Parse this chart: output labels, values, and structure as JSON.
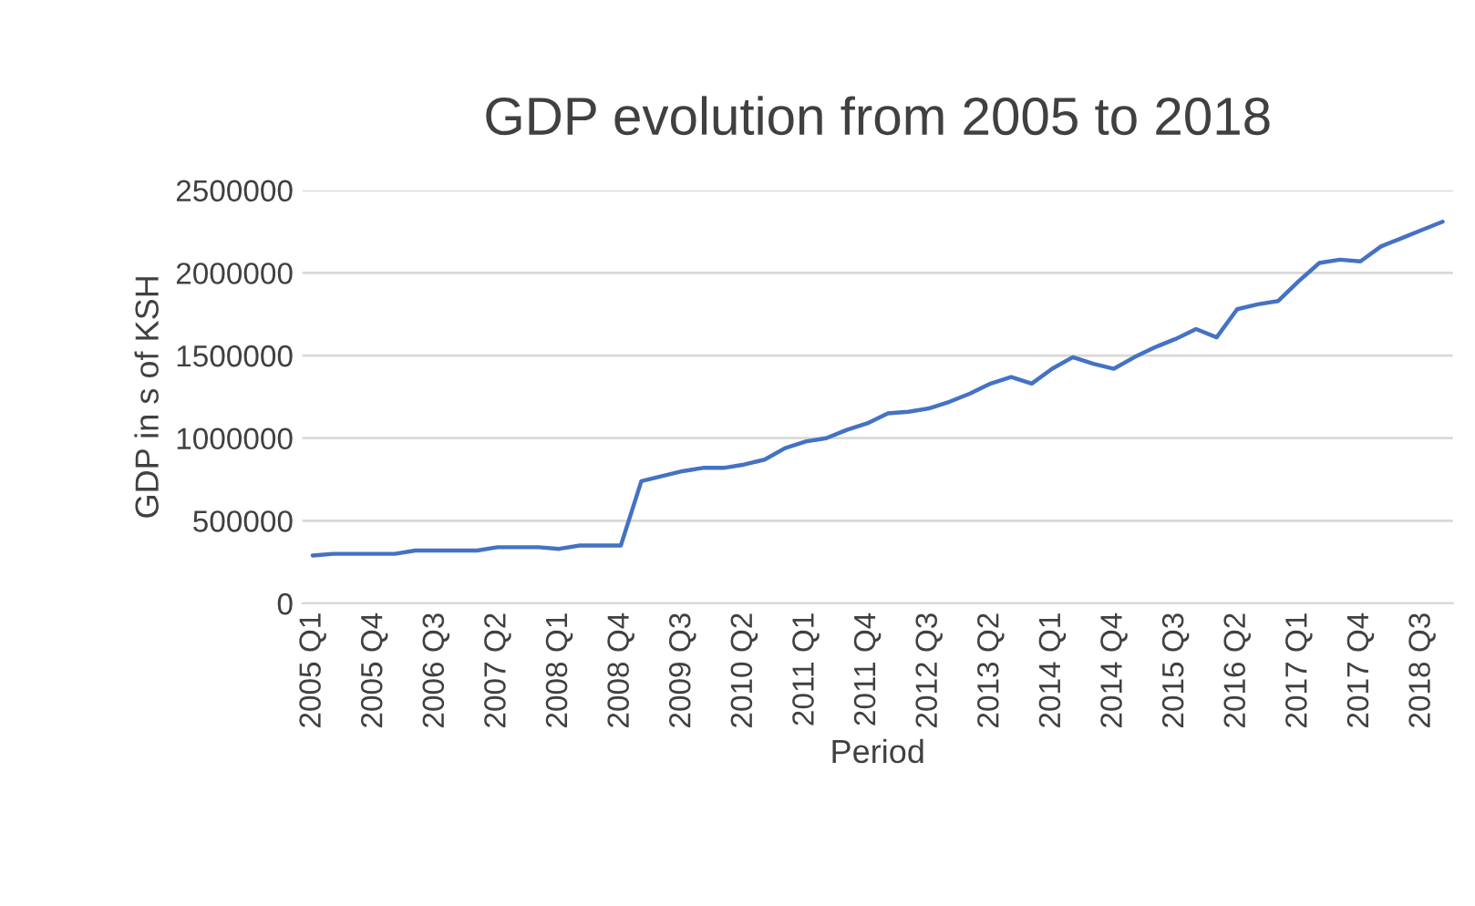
{
  "chart_data": {
    "type": "line",
    "title": "GDP evolution from 2005 to 2018",
    "xlabel": "Period",
    "ylabel": "GDP in s of KSH",
    "categories": [
      "2005 Q1",
      null,
      null,
      "2005 Q4",
      null,
      null,
      "2006 Q3",
      null,
      null,
      "2007 Q2",
      null,
      null,
      "2008 Q1",
      null,
      null,
      "2008 Q4",
      null,
      null,
      "2009 Q3",
      null,
      null,
      "2010 Q2",
      null,
      null,
      "2011 Q1",
      null,
      null,
      "2011 Q4",
      null,
      null,
      "2012 Q3",
      null,
      null,
      "2013 Q2",
      null,
      null,
      "2014 Q1",
      null,
      null,
      "2014 Q4",
      null,
      null,
      "2015 Q3",
      null,
      null,
      "2016 Q2",
      null,
      null,
      "2017 Q1",
      null,
      null,
      "2017 Q4",
      null,
      null,
      "2018 Q3",
      null
    ],
    "series": [
      {
        "color": "#4472c4",
        "values": [
          290000,
          300000,
          300000,
          300000,
          300000,
          320000,
          320000,
          320000,
          320000,
          340000,
          340000,
          340000,
          330000,
          350000,
          350000,
          350000,
          740000,
          770000,
          800000,
          820000,
          820000,
          840000,
          870000,
          940000,
          980000,
          1000000,
          1050000,
          1090000,
          1150000,
          1160000,
          1180000,
          1220000,
          1270000,
          1330000,
          1370000,
          1330000,
          1420000,
          1490000,
          1450000,
          1420000,
          1490000,
          1550000,
          1600000,
          1660000,
          1610000,
          1780000,
          1810000,
          1830000,
          1950000,
          2060000,
          2080000,
          2070000,
          2160000,
          2210000,
          2260000,
          2310000
        ]
      }
    ],
    "ylim": [
      0,
      2500000
    ],
    "yticks": [
      0,
      500000,
      1000000,
      1500000,
      2000000,
      2500000
    ],
    "grid": "y",
    "marker": "none",
    "line_style": "solid"
  }
}
